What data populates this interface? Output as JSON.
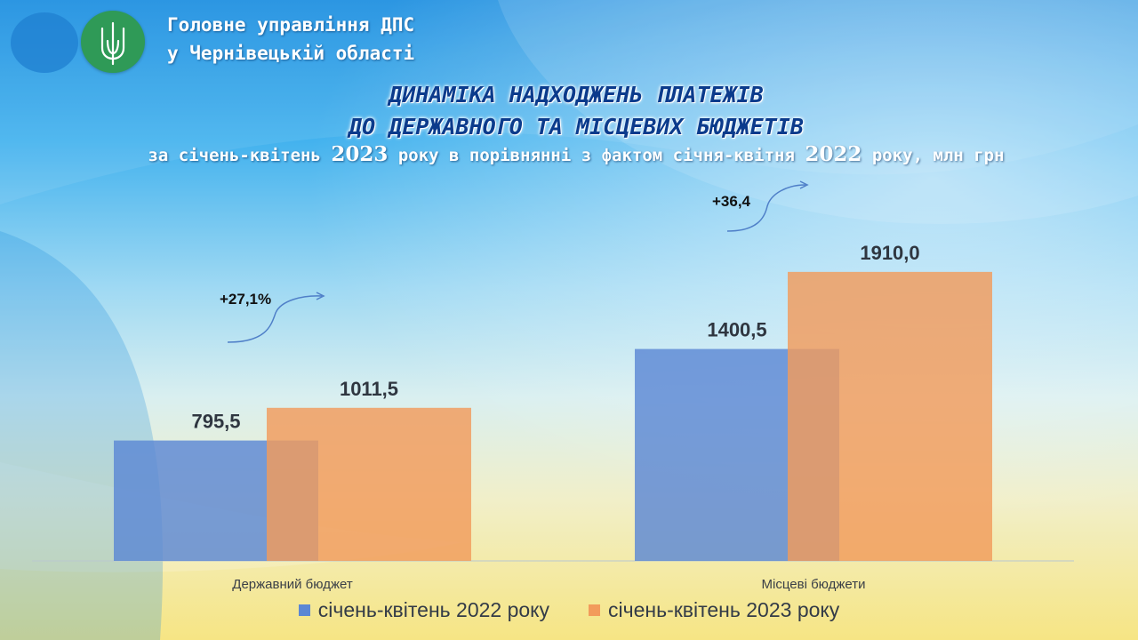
{
  "header": {
    "org_line1": "Головне управління ДПС",
    "org_line2": "у Чернівецькій області",
    "title_line1": "ДИНАМІКА НАДХОДЖЕНЬ ПЛАТЕЖІВ",
    "title_line2": "ДО ДЕРЖАВНОГО ТА МІСЦЕВИХ БЮДЖЕТІВ",
    "subtitle_part1": "за січень-квітень ",
    "subtitle_year1": "2023",
    "subtitle_part2": " року в порівнянні  з фактом січня-квітня ",
    "subtitle_year2": "2022",
    "subtitle_part3": " року, млн грн"
  },
  "chart_data": {
    "type": "bar",
    "title": "",
    "xlabel": "",
    "ylabel": "",
    "categories": [
      "Державний бюджет",
      "Місцеві бюджети"
    ],
    "series": [
      {
        "name": "січень-квітень 2022 року",
        "values": [
          795.5,
          1400.5
        ],
        "labels": [
          "795,5",
          "1400,5"
        ],
        "color": "#5b87d4"
      },
      {
        "name": "січень-квітень 2023 року",
        "values": [
          1011.5,
          1910.0
        ],
        "labels": [
          "1011,5",
          "1910,0"
        ],
        "color": "#f29b5b"
      }
    ],
    "annotations": [
      "+27,1%",
      "+36,4"
    ],
    "ylim": [
      0,
      2250
    ],
    "grid": false,
    "legend_position": "bottom"
  },
  "colors": {
    "title": "#0b3b8c",
    "series_2022": "#5b87d4",
    "series_2023": "#f29b5b"
  }
}
